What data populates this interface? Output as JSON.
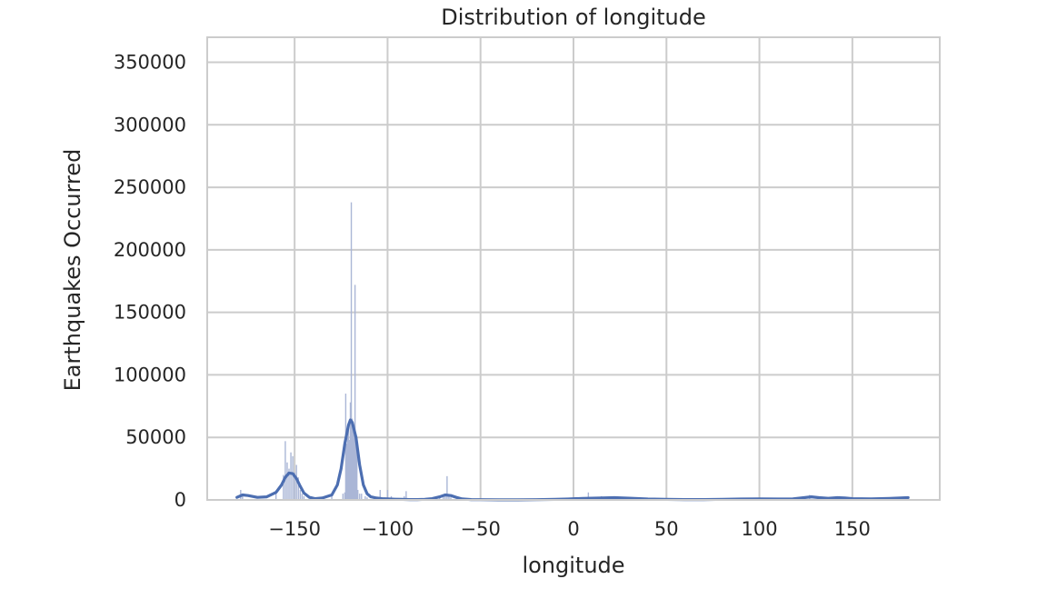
{
  "chart_data": {
    "type": "bar",
    "title": "Distribution of longitude",
    "xlabel": "longitude",
    "ylabel": "Earthquakes Occurred",
    "xlim": [
      -197,
      197
    ],
    "ylim": [
      0,
      370000
    ],
    "xticks": [
      -150,
      -100,
      -50,
      0,
      50,
      100,
      150
    ],
    "xtick_labels": [
      "−150",
      "−100",
      "−50",
      "0",
      "50",
      "100",
      "150"
    ],
    "yticks": [
      0,
      50000,
      100000,
      150000,
      200000,
      250000,
      300000,
      350000
    ],
    "ytick_labels": [
      "0",
      "50000",
      "100000",
      "150000",
      "200000",
      "250000",
      "300000",
      "350000"
    ],
    "grid": true,
    "colors": {
      "bars": "#aab6d6",
      "kde": "#4c6eb1",
      "grid": "#cccccc",
      "spine": "#cccccc"
    },
    "series": [
      {
        "type": "histogram",
        "x": [
          -179,
          -178,
          -160,
          -156,
          -155,
          -154,
          -153,
          -152,
          -151,
          -150,
          -149,
          -148,
          -147,
          -146,
          -145,
          -141,
          -130,
          -124,
          -123,
          -122.5,
          -122,
          -121.5,
          -121,
          -120.5,
          -120,
          -119.5,
          -119,
          -118.5,
          -118,
          -117.5,
          -117,
          -116.5,
          -116,
          -115,
          -114,
          -112,
          -111,
          -104,
          -100,
          -98,
          -91,
          -90,
          -72,
          -70,
          -69,
          -68,
          -67,
          -66,
          8,
          15,
          22,
          28,
          127,
          140,
          143,
          178
        ],
        "values": [
          8000,
          5000,
          5000,
          20000,
          47000,
          30000,
          25000,
          38000,
          35000,
          22000,
          28000,
          18000,
          8000,
          5000,
          3000,
          3000,
          3000,
          5000,
          6000,
          85000,
          45000,
          50000,
          60000,
          48000,
          78000,
          238000,
          65000,
          55000,
          52000,
          172000,
          52000,
          40000,
          8000,
          5000,
          5000,
          3000,
          2000,
          8000,
          8000,
          3000,
          3000,
          7000,
          3000,
          4000,
          5000,
          19000,
          4000,
          2000,
          6000,
          3000,
          2000,
          2000,
          4000,
          2000,
          3000,
          2000
        ]
      },
      {
        "type": "kde",
        "x": [
          -181,
          -178,
          -175,
          -170,
          -165,
          -160,
          -157,
          -155,
          -153,
          -151,
          -149,
          -147,
          -145,
          -142,
          -139,
          -135,
          -130,
          -127,
          -125,
          -123,
          -121,
          -120,
          -119,
          -117,
          -115,
          -113,
          -111,
          -109,
          -106,
          -103,
          -100,
          -96,
          -92,
          -88,
          -84,
          -80,
          -76,
          -72,
          -69,
          -66,
          -63,
          -60,
          -55,
          -50,
          -40,
          -30,
          -20,
          -10,
          -3,
          5,
          15,
          22,
          30,
          40,
          50,
          60,
          70,
          80,
          90,
          100,
          110,
          118,
          124,
          128,
          132,
          137,
          142,
          146,
          150,
          160,
          170,
          180
        ],
        "values": [
          2000,
          4000,
          3500,
          2000,
          2500,
          6000,
          12000,
          18000,
          21500,
          21000,
          17000,
          11000,
          5500,
          2000,
          1000,
          1500,
          4000,
          12000,
          25000,
          45000,
          60000,
          64000,
          62000,
          50000,
          28000,
          12000,
          5000,
          2500,
          1500,
          1000,
          800,
          600,
          400,
          300,
          300,
          500,
          1000,
          2500,
          4000,
          3500,
          2000,
          800,
          300,
          200,
          100,
          100,
          200,
          400,
          700,
          1200,
          1500,
          1800,
          1400,
          700,
          400,
          300,
          300,
          500,
          700,
          800,
          700,
          900,
          1800,
          2500,
          1800,
          1300,
          1800,
          1500,
          1000,
          800,
          1200,
          1800
        ]
      }
    ]
  }
}
